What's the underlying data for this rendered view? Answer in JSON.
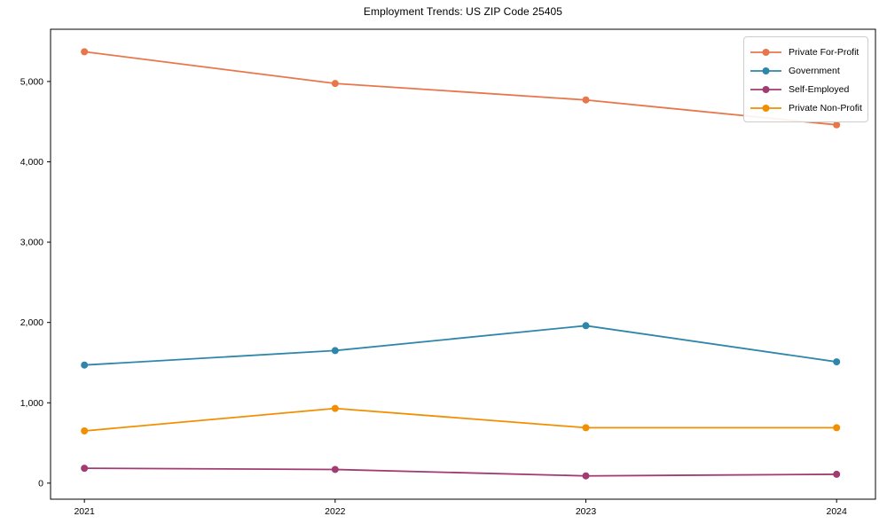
{
  "chart_data": {
    "type": "line",
    "title": "Employment Trends: US ZIP Code 25405",
    "xlabel": "",
    "ylabel": "",
    "x": [
      2021,
      2022,
      2023,
      2024
    ],
    "x_tick_labels": [
      "2021",
      "2022",
      "2023",
      "2024"
    ],
    "y_ticks": [
      0,
      1000,
      2000,
      3000,
      4000,
      5000
    ],
    "y_tick_labels": [
      "0",
      "1,000",
      "2,000",
      "3,000",
      "4,000",
      "5,000"
    ],
    "xlim": [
      2020.865,
      2024.155
    ],
    "ylim": [
      -200,
      5650
    ],
    "grid": false,
    "legend_position": "upper right",
    "marker": "circle",
    "line_width": 1.8,
    "marker_radius": 4,
    "background_color": "#ffffff",
    "frame_color": "#000000",
    "series": [
      {
        "name": "Private For-Profit",
        "color": "#E8764B",
        "values": [
          5370,
          4975,
          4770,
          4460
        ]
      },
      {
        "name": "Government",
        "color": "#2E86AB",
        "values": [
          1470,
          1650,
          1960,
          1510
        ]
      },
      {
        "name": "Self-Employed",
        "color": "#A23B72",
        "values": [
          185,
          170,
          90,
          110
        ]
      },
      {
        "name": "Private Non-Profit",
        "color": "#F18F01",
        "values": [
          650,
          930,
          690,
          690
        ]
      }
    ]
  }
}
